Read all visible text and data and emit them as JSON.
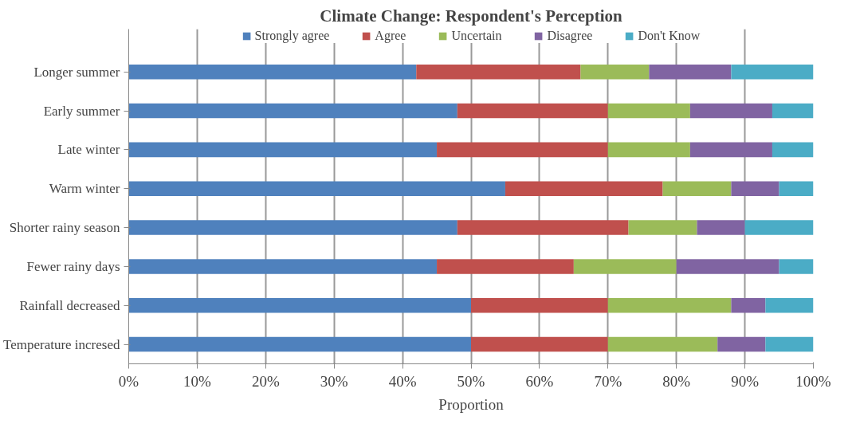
{
  "chart_data": {
    "type": "bar",
    "orientation": "horizontal",
    "stacked": true,
    "title": "Climate Change: Respondent's Perception",
    "xlabel": "Proportion",
    "categories": [
      "Longer summer",
      "Early summer",
      "Late winter",
      "Warm winter",
      "Shorter rainy season",
      "Fewer rainy days",
      "Rainfall decreased",
      "Temperature incresed"
    ],
    "series": [
      {
        "name": "Strongly agree",
        "color": "#4f81bd",
        "values": [
          42,
          48,
          45,
          55,
          48,
          45,
          50,
          50
        ]
      },
      {
        "name": "Agree",
        "color": "#c0504d",
        "values": [
          24,
          22,
          25,
          23,
          25,
          20,
          20,
          20
        ]
      },
      {
        "name": "Uncertain",
        "color": "#9bbb59",
        "values": [
          10,
          12,
          12,
          10,
          10,
          15,
          18,
          16
        ]
      },
      {
        "name": "Disagree",
        "color": "#8064a2",
        "values": [
          12,
          12,
          12,
          7,
          7,
          15,
          5,
          7
        ]
      },
      {
        "name": "Don't Know",
        "color": "#4bacc6",
        "values": [
          12,
          6,
          6,
          5,
          10,
          5,
          7,
          7
        ]
      }
    ],
    "xlim": [
      0,
      100
    ],
    "xticks": [
      {
        "value": 0,
        "label": "0%"
      },
      {
        "value": 10,
        "label": "10%"
      },
      {
        "value": 20,
        "label": "20%"
      },
      {
        "value": 30,
        "label": "30%"
      },
      {
        "value": 40,
        "label": "40%"
      },
      {
        "value": 50,
        "label": "50%"
      },
      {
        "value": 60,
        "label": "60%"
      },
      {
        "value": 70,
        "label": "70%"
      },
      {
        "value": 80,
        "label": "80%"
      },
      {
        "value": 90,
        "label": "90%"
      },
      {
        "value": 100,
        "label": "100%"
      }
    ],
    "grid": "x",
    "legend": "top"
  }
}
